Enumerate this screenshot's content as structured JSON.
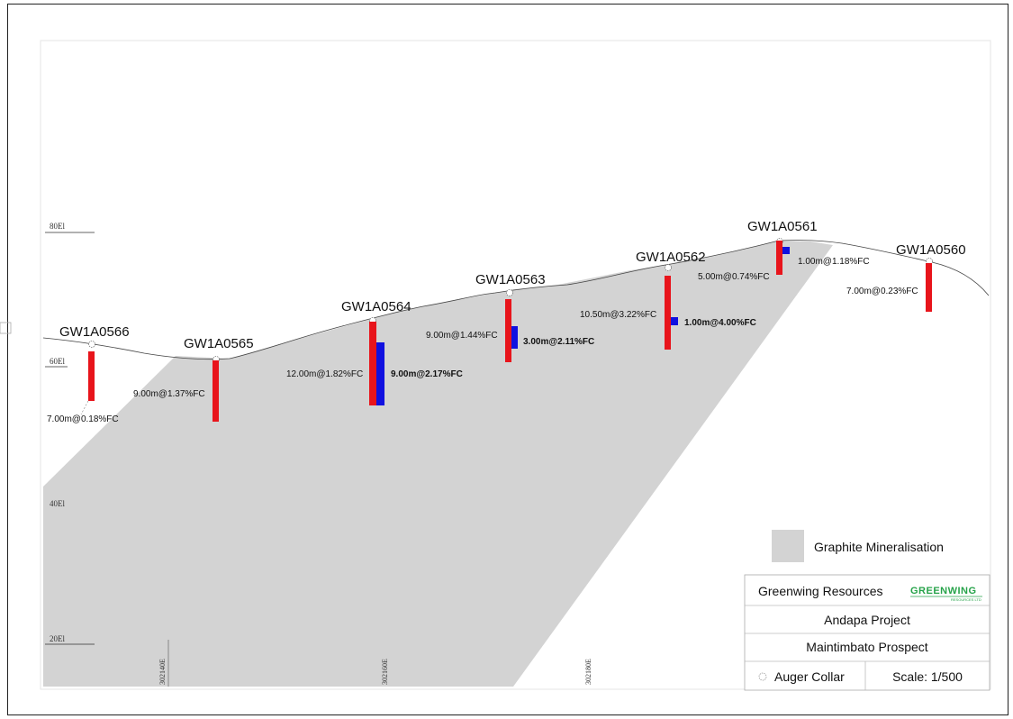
{
  "figure": {
    "elevation_labels": [
      "80El",
      "60El",
      "40El",
      "20El"
    ],
    "easting_labels": [
      "302140E",
      "302160E",
      "302180E"
    ]
  },
  "holes": [
    {
      "id": "GW1A0566",
      "label": "7.00m@0.18%FC"
    },
    {
      "id": "GW1A0565",
      "label": "9.00m@1.37%FC"
    },
    {
      "id": "GW1A0564",
      "label": "12.00m@1.82%FC",
      "high_grade_label": "9.00m@2.17%FC"
    },
    {
      "id": "GW1A0563",
      "label": "9.00m@1.44%FC",
      "high_grade_label": "3.00m@2.11%FC"
    },
    {
      "id": "GW1A0562",
      "label": "10.50m@3.22%FC",
      "high_grade_label": "1.00m@4.00%FC"
    },
    {
      "id": "GW1A0561",
      "label": "5.00m@0.74%FC",
      "high_grade_label": "1.00m@1.18%FC"
    },
    {
      "id": "GW1A0560",
      "label": "7.00m@0.23%FC"
    }
  ],
  "legend": {
    "mineralisation_label": "Graphite Mineralisation",
    "mineralisation_color": "#d3d3d3"
  },
  "title_block": {
    "company": "Greenwing Resources",
    "logo_text": "GREENWING",
    "logo_subtext": "RESOURCES LTD",
    "project": "Andapa Project",
    "prospect": "Maintimbato Prospect",
    "collar_legend": "Auger Collar",
    "scale": "Scale:  1/500"
  },
  "colors": {
    "intercept": "#e8141b",
    "high_grade": "#1010e0",
    "mineralisation": "#d3d3d3",
    "logo": "#27a34a"
  }
}
